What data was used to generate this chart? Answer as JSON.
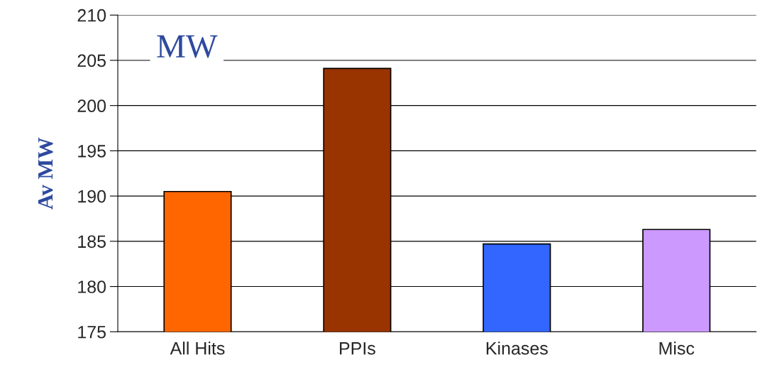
{
  "chart_data": {
    "type": "bar",
    "title": "MW",
    "ylabel": "Av MW",
    "categories": [
      "All Hits",
      "PPIs",
      "Kinases",
      "Misc"
    ],
    "values": [
      190.5,
      204.1,
      184.7,
      186.3
    ],
    "colors": [
      "#ff6600",
      "#993300",
      "#3366ff",
      "#cc99ff"
    ],
    "ylim": [
      175,
      210
    ],
    "yticks": [
      175,
      180,
      185,
      190,
      195,
      200,
      205,
      210
    ],
    "grid": "y"
  }
}
